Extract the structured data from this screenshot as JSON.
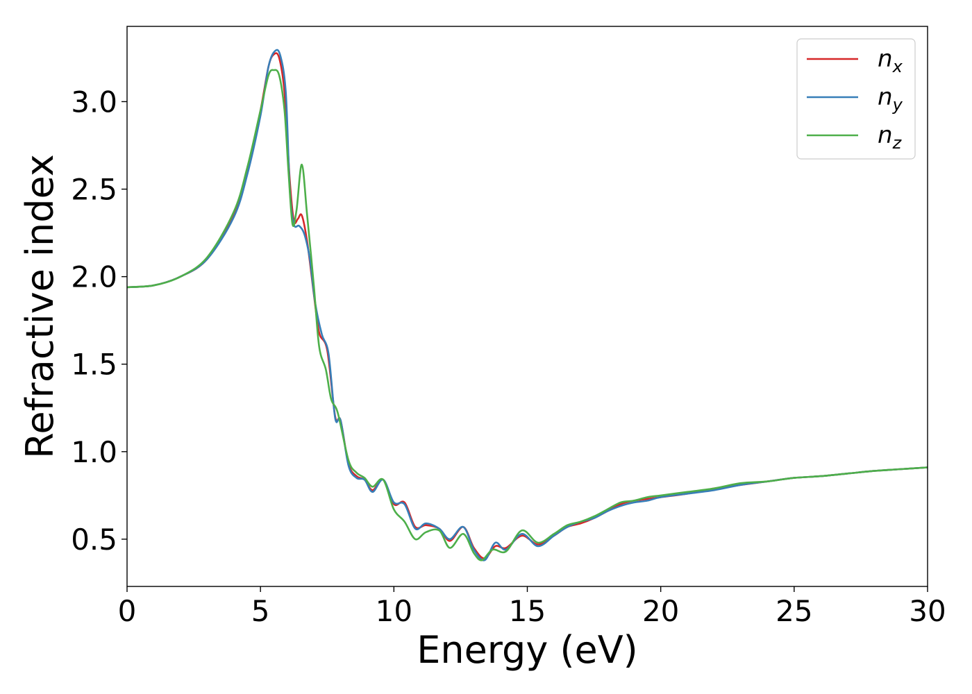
{
  "chart_data": {
    "type": "line",
    "xlabel": "Energy (eV)",
    "ylabel": "Refractive index",
    "xlim": [
      0,
      30
    ],
    "ylim": [
      0.23,
      3.43
    ],
    "xticks": [
      "0",
      "5",
      "10",
      "15",
      "20",
      "25",
      "30"
    ],
    "yticks": [
      "0.5",
      "1.0",
      "1.5",
      "2.0",
      "2.5",
      "3.0"
    ],
    "legend_position": "top-right",
    "grid": false,
    "series": [
      {
        "name": "n",
        "subscript": "x",
        "color": "#d62728",
        "points": [
          [
            0,
            1.94
          ],
          [
            1,
            1.95
          ],
          [
            2,
            2.0
          ],
          [
            3,
            2.1
          ],
          [
            4,
            2.35
          ],
          [
            4.5,
            2.6
          ],
          [
            5,
            2.95
          ],
          [
            5.3,
            3.2
          ],
          [
            5.5,
            3.27
          ],
          [
            5.7,
            3.25
          ],
          [
            5.9,
            3.05
          ],
          [
            6.1,
            2.55
          ],
          [
            6.25,
            2.32
          ],
          [
            6.4,
            2.33
          ],
          [
            6.55,
            2.35
          ],
          [
            6.75,
            2.2
          ],
          [
            7.0,
            1.9
          ],
          [
            7.2,
            1.68
          ],
          [
            7.5,
            1.58
          ],
          [
            7.8,
            1.2
          ],
          [
            8.0,
            1.18
          ],
          [
            8.3,
            0.93
          ],
          [
            8.6,
            0.86
          ],
          [
            8.9,
            0.84
          ],
          [
            9.2,
            0.78
          ],
          [
            9.6,
            0.84
          ],
          [
            10.0,
            0.7
          ],
          [
            10.4,
            0.71
          ],
          [
            10.8,
            0.57
          ],
          [
            11.2,
            0.58
          ],
          [
            11.7,
            0.56
          ],
          [
            12.1,
            0.49
          ],
          [
            12.6,
            0.57
          ],
          [
            13.0,
            0.45
          ],
          [
            13.4,
            0.39
          ],
          [
            13.8,
            0.46
          ],
          [
            14.2,
            0.45
          ],
          [
            14.8,
            0.52
          ],
          [
            15.4,
            0.47
          ],
          [
            16.0,
            0.52
          ],
          [
            16.5,
            0.57
          ],
          [
            17.0,
            0.59
          ],
          [
            17.5,
            0.62
          ],
          [
            18.0,
            0.66
          ],
          [
            18.5,
            0.7
          ],
          [
            19.0,
            0.72
          ],
          [
            19.5,
            0.73
          ],
          [
            20,
            0.74
          ],
          [
            21,
            0.76
          ],
          [
            22,
            0.79
          ],
          [
            23,
            0.81
          ],
          [
            24,
            0.83
          ],
          [
            25,
            0.85
          ],
          [
            26,
            0.86
          ],
          [
            27,
            0.875
          ],
          [
            28,
            0.89
          ],
          [
            29,
            0.9
          ],
          [
            30,
            0.91
          ]
        ]
      },
      {
        "name": "n",
        "subscript": "y",
        "color": "#377eb8",
        "points": [
          [
            0,
            1.94
          ],
          [
            1,
            1.95
          ],
          [
            2,
            2.0
          ],
          [
            3,
            2.1
          ],
          [
            4,
            2.34
          ],
          [
            4.5,
            2.58
          ],
          [
            5,
            2.92
          ],
          [
            5.3,
            3.2
          ],
          [
            5.55,
            3.29
          ],
          [
            5.75,
            3.26
          ],
          [
            5.95,
            3.05
          ],
          [
            6.1,
            2.5
          ],
          [
            6.25,
            2.3
          ],
          [
            6.45,
            2.29
          ],
          [
            6.65,
            2.24
          ],
          [
            6.85,
            2.1
          ],
          [
            7.05,
            1.85
          ],
          [
            7.3,
            1.67
          ],
          [
            7.55,
            1.56
          ],
          [
            7.8,
            1.19
          ],
          [
            8.0,
            1.18
          ],
          [
            8.3,
            0.92
          ],
          [
            8.6,
            0.85
          ],
          [
            8.9,
            0.84
          ],
          [
            9.2,
            0.77
          ],
          [
            9.6,
            0.84
          ],
          [
            10.0,
            0.71
          ],
          [
            10.4,
            0.7
          ],
          [
            10.8,
            0.56
          ],
          [
            11.2,
            0.59
          ],
          [
            11.7,
            0.56
          ],
          [
            12.1,
            0.5
          ],
          [
            12.6,
            0.57
          ],
          [
            13.0,
            0.44
          ],
          [
            13.4,
            0.38
          ],
          [
            13.8,
            0.48
          ],
          [
            14.2,
            0.44
          ],
          [
            14.8,
            0.53
          ],
          [
            15.4,
            0.46
          ],
          [
            16.0,
            0.52
          ],
          [
            16.5,
            0.57
          ],
          [
            17.0,
            0.6
          ],
          [
            17.5,
            0.62
          ],
          [
            18.0,
            0.66
          ],
          [
            18.5,
            0.69
          ],
          [
            19.0,
            0.71
          ],
          [
            19.5,
            0.72
          ],
          [
            20,
            0.74
          ],
          [
            21,
            0.76
          ],
          [
            22,
            0.78
          ],
          [
            23,
            0.81
          ],
          [
            24,
            0.83
          ],
          [
            25,
            0.85
          ],
          [
            26,
            0.86
          ],
          [
            27,
            0.875
          ],
          [
            28,
            0.89
          ],
          [
            29,
            0.9
          ],
          [
            30,
            0.91
          ]
        ]
      },
      {
        "name": "n",
        "subscript": "z",
        "color": "#4daf4a",
        "points": [
          [
            0,
            1.94
          ],
          [
            1,
            1.95
          ],
          [
            2,
            2.0
          ],
          [
            3,
            2.11
          ],
          [
            4,
            2.37
          ],
          [
            4.5,
            2.62
          ],
          [
            5,
            2.95
          ],
          [
            5.3,
            3.15
          ],
          [
            5.5,
            3.18
          ],
          [
            5.7,
            3.15
          ],
          [
            5.9,
            2.95
          ],
          [
            6.05,
            2.6
          ],
          [
            6.2,
            2.3
          ],
          [
            6.35,
            2.38
          ],
          [
            6.55,
            2.64
          ],
          [
            6.75,
            2.35
          ],
          [
            7.0,
            1.95
          ],
          [
            7.2,
            1.6
          ],
          [
            7.45,
            1.47
          ],
          [
            7.65,
            1.3
          ],
          [
            7.9,
            1.22
          ],
          [
            8.3,
            0.95
          ],
          [
            8.6,
            0.88
          ],
          [
            8.9,
            0.85
          ],
          [
            9.2,
            0.8
          ],
          [
            9.6,
            0.84
          ],
          [
            10.0,
            0.67
          ],
          [
            10.4,
            0.6
          ],
          [
            10.8,
            0.5
          ],
          [
            11.2,
            0.54
          ],
          [
            11.7,
            0.55
          ],
          [
            12.1,
            0.45
          ],
          [
            12.6,
            0.53
          ],
          [
            13.0,
            0.42
          ],
          [
            13.3,
            0.38
          ],
          [
            13.7,
            0.44
          ],
          [
            14.2,
            0.43
          ],
          [
            14.8,
            0.55
          ],
          [
            15.4,
            0.48
          ],
          [
            16.0,
            0.53
          ],
          [
            16.5,
            0.58
          ],
          [
            17.0,
            0.6
          ],
          [
            17.5,
            0.63
          ],
          [
            18.0,
            0.67
          ],
          [
            18.5,
            0.71
          ],
          [
            19.0,
            0.72
          ],
          [
            19.5,
            0.74
          ],
          [
            20,
            0.75
          ],
          [
            21,
            0.77
          ],
          [
            22,
            0.79
          ],
          [
            23,
            0.82
          ],
          [
            24,
            0.83
          ],
          [
            25,
            0.85
          ],
          [
            26,
            0.86
          ],
          [
            27,
            0.875
          ],
          [
            28,
            0.89
          ],
          [
            29,
            0.9
          ],
          [
            30,
            0.91
          ]
        ]
      }
    ]
  }
}
